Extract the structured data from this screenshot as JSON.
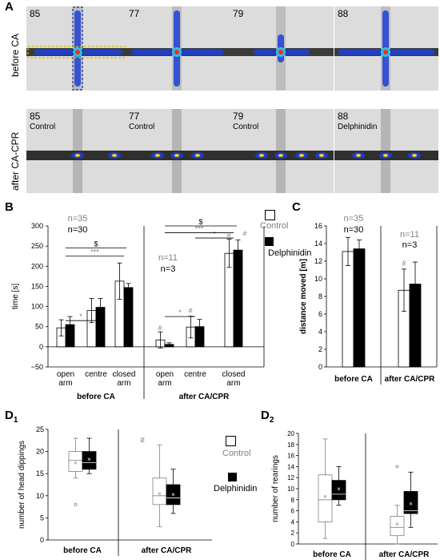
{
  "panels": {
    "A": "A",
    "B": "B",
    "C": "C",
    "D1_letter": "D",
    "D1_sub": "1",
    "D2_letter": "D",
    "D2_sub": "2"
  },
  "panel_A": {
    "row_labels": [
      "before CA",
      "after CA-CPR"
    ],
    "top_row": [
      {
        "number": "85"
      },
      {
        "number": "77"
      },
      {
        "number": "79"
      },
      {
        "number": "88"
      }
    ],
    "bottom_row": [
      {
        "number": "85",
        "condition": "Control"
      },
      {
        "number": "77",
        "condition": "Control"
      },
      {
        "number": "79",
        "condition": "Control"
      },
      {
        "number": "88",
        "condition": "Delphinidin"
      }
    ],
    "colors": {
      "background": "#d9d9d9",
      "arm": "#333333",
      "heat_low": "#1d3fd6",
      "heat_high": "#ff2a1a"
    }
  },
  "legend": {
    "control": "Control",
    "delphinidin": "Delphinidin"
  },
  "colors": {
    "control_fill": "#ffffff",
    "delphinidin_fill": "#000000",
    "gray_text": "#808080"
  },
  "chart_data": [
    {
      "id": "B",
      "type": "bar",
      "ylabel": "time [s]",
      "ylim": [
        -50,
        300
      ],
      "yticks": [
        "300",
        "250",
        "200",
        "150",
        "100",
        "50",
        "0",
        "−50"
      ],
      "groups": [
        "before CA",
        "after CA/CPR"
      ],
      "categories": [
        [
          "open",
          "arm"
        ],
        [
          "centre"
        ],
        [
          "closed",
          "arm"
        ],
        [
          "open",
          "arm"
        ],
        [
          "centre"
        ],
        [
          "closed",
          "arm"
        ]
      ],
      "series": [
        {
          "name": "Control",
          "values": [
            47,
            90,
            163,
            17,
            49,
            232
          ],
          "errors": [
            20,
            30,
            45,
            20,
            27,
            35
          ]
        },
        {
          "name": "Delphinidin",
          "values": [
            55,
            98,
            147,
            6,
            50,
            240
          ],
          "errors": [
            20,
            22,
            10,
            4,
            18,
            25
          ]
        }
      ],
      "n_labels": {
        "before_control": "n=35",
        "before_delph": "n=30",
        "after_control": "n=11",
        "after_delph": "n=3"
      },
      "annotations": {
        "star": "*",
        "triple_star": "***",
        "dollar": "$",
        "hash": "#"
      }
    },
    {
      "id": "C",
      "type": "bar",
      "ylabel": "distance moved [m]",
      "ylim": [
        0,
        16
      ],
      "yticks": [
        "16",
        "14",
        "12",
        "10",
        "8",
        "6",
        "4",
        "2",
        "0"
      ],
      "categories": [
        "before CA",
        "after CA/CPR"
      ],
      "series": [
        {
          "name": "Control",
          "values": [
            13.1,
            8.7
          ],
          "errors": [
            1.6,
            2.4
          ]
        },
        {
          "name": "Delphinidin",
          "values": [
            13.4,
            9.4
          ],
          "errors": [
            1.0,
            2.5
          ]
        }
      ],
      "n_labels": {
        "before_control": "n=35",
        "before_delph": "n=30",
        "after_control": "n=11",
        "after_delph": "n=3"
      },
      "annotations": {
        "hash": "#"
      }
    },
    {
      "id": "D1",
      "type": "box",
      "ylabel": "number of head dippings",
      "ylim": [
        0,
        25
      ],
      "yticks": [
        "25",
        "20",
        "15",
        "10",
        "5",
        "0"
      ],
      "categories": [
        "before CA",
        "after CA/CPR"
      ],
      "series": [
        {
          "name": "Control",
          "boxes": [
            {
              "min": 14,
              "q1": 15.5,
              "median": 18,
              "q3": 20,
              "max": 23,
              "mean": 17.5,
              "outliers": [
                8
              ]
            },
            {
              "min": 3,
              "q1": 8,
              "median": 10,
              "q3": 14,
              "max": 21.5,
              "mean": 10.5,
              "outliers": []
            }
          ]
        },
        {
          "name": "Delphinidin",
          "boxes": [
            {
              "min": 15,
              "q1": 16,
              "median": 17.5,
              "q3": 20,
              "max": 23,
              "mean": 18.3,
              "outliers": []
            },
            {
              "min": 6,
              "q1": 8,
              "median": 9.5,
              "q3": 12.5,
              "max": 16,
              "mean": 10.3,
              "outliers": []
            }
          ]
        }
      ],
      "annotations": {
        "hash": "#",
        "mean_marker": "×"
      }
    },
    {
      "id": "D2",
      "type": "box",
      "ylabel": "number of rearings",
      "ylim": [
        0,
        20
      ],
      "yticks": [
        "20",
        "18",
        "16",
        "14",
        "12",
        "10",
        "8",
        "6",
        "4",
        "2",
        "0"
      ],
      "categories": [
        "before CA",
        "after CA/CPR"
      ],
      "series": [
        {
          "name": "Control",
          "boxes": [
            {
              "min": 1,
              "q1": 4,
              "median": 8,
              "q3": 12.5,
              "max": 19,
              "mean": 8.6,
              "outliers": []
            },
            {
              "min": 0,
              "q1": 1.5,
              "median": 3,
              "q3": 5,
              "max": 7,
              "mean": 3.6,
              "outliers": [
                14
              ]
            }
          ]
        },
        {
          "name": "Delphinidin",
          "boxes": [
            {
              "min": 7,
              "q1": 8,
              "median": 9,
              "q3": 11.5,
              "max": 14,
              "mean": 10,
              "outliers": []
            },
            {
              "min": 3,
              "q1": 5.5,
              "median": 6,
              "q3": 9.5,
              "max": 13,
              "mean": 7.3,
              "outliers": []
            }
          ]
        }
      ],
      "annotations": {
        "mean_marker": "×"
      }
    }
  ]
}
